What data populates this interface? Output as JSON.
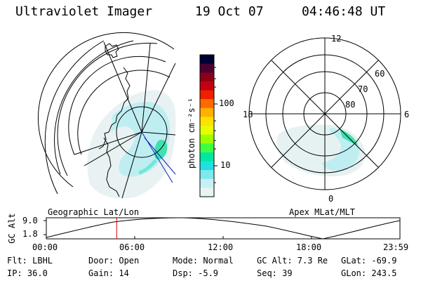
{
  "header": {
    "instrument": "Ultraviolet Imager",
    "date": "19 Oct 07",
    "time": "04:46:48 UT"
  },
  "colorbar": {
    "unit_label": "photon cm⁻²s⁻¹",
    "tick_100": "100",
    "tick_10": "10",
    "colors": [
      "#000033",
      "#4a0030",
      "#8a0018",
      "#c40010",
      "#ee2000",
      "#ff6a00",
      "#ffb000",
      "#ffe000",
      "#e6ff00",
      "#9cff00",
      "#40ff40",
      "#00e8a0",
      "#20e0e0",
      "#80e8f0",
      "#c8f0f4",
      "#e8f4f4"
    ]
  },
  "left_panel": {
    "label": "Geographic Lat/Lon"
  },
  "right_panel": {
    "label": "Apex MLat/MLT",
    "mlt_labels": {
      "top": "12",
      "left": "18",
      "right": "6",
      "bottom": "0"
    },
    "lat_labels": [
      "60",
      "70",
      "80"
    ]
  },
  "timeline": {
    "y_axis_label": "GC Alt",
    "y_max": "9.0",
    "y_min": "1.8",
    "ticks": [
      "00:00",
      "06:00",
      "12:00",
      "18:00",
      "23:59"
    ],
    "current_time_fraction": 0.199
  },
  "info": {
    "flt": "Flt: LBHL",
    "ip": "IP: 36.0",
    "door": "Door: Open",
    "gain": "Gain: 14",
    "mode": "Mode: Normal",
    "dsp": "Dsp:   -5.9",
    "gcalt": "GC Alt: 7.3 Re",
    "seq": "Seq: 39",
    "glat": "GLat: -69.9",
    "glon": "GLon: 243.5"
  }
}
